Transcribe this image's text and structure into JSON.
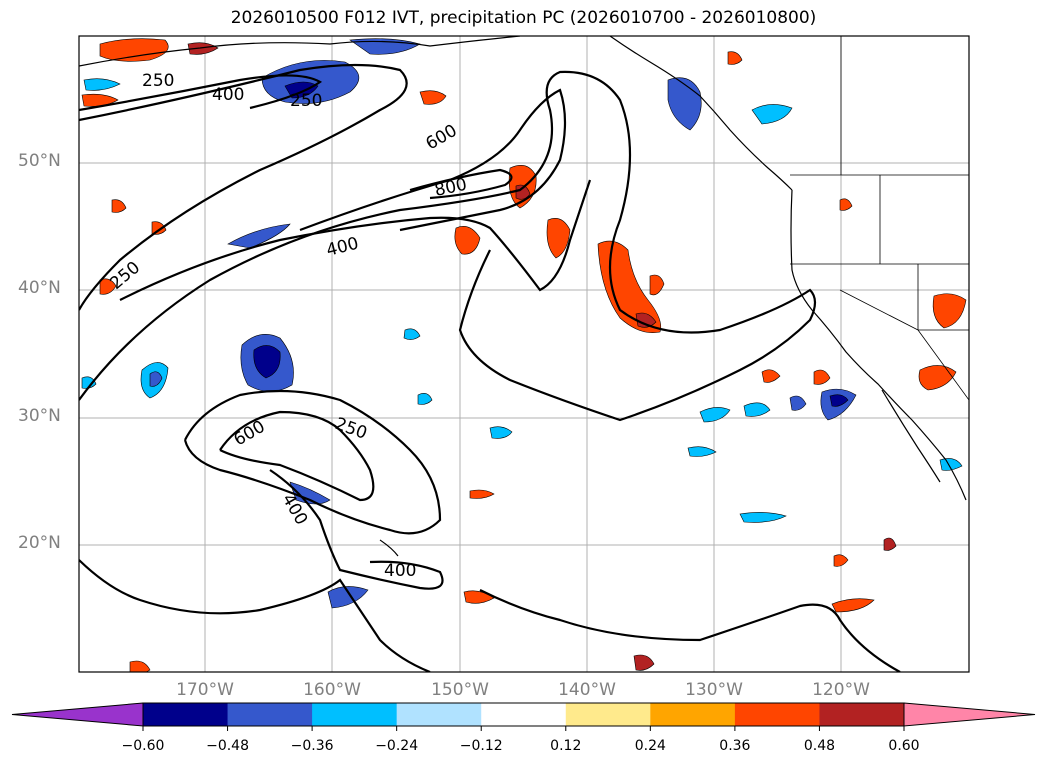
{
  "title": "2026010500 F012 IVT, precipitation PC (2026010700 - 2026010800)",
  "lat_labels": [
    "50°N",
    "40°N",
    "30°N",
    "20°N"
  ],
  "lon_labels": [
    "170°W",
    "160°W",
    "150°W",
    "140°W",
    "130°W",
    "120°W"
  ],
  "contour_labels": [
    "250",
    "400",
    "250",
    "600",
    "800",
    "400",
    "250",
    "250",
    "600",
    "400",
    "400"
  ],
  "colorbar": {
    "ticks": [
      "−0.60",
      "−0.48",
      "−0.36",
      "−0.24",
      "−0.12",
      "0.12",
      "0.24",
      "0.36",
      "0.48",
      "0.60"
    ],
    "colors": [
      "#9933cc",
      "#00008b",
      "#3558cc",
      "#00bfff",
      "#b0e2ff",
      "#ffffff",
      "#ffea8c",
      "#ffa500",
      "#ff4500",
      "#b22222",
      "#ff85a8"
    ]
  },
  "palette": {
    "neg_strong": "#00008b",
    "neg_mid": "#3558cc",
    "neg_light": "#00bfff",
    "neg_pale": "#b0e2ff",
    "pos_pale": "#ffea8c",
    "pos_light": "#ffa500",
    "pos_mid": "#ff4500",
    "pos_strong": "#b22222",
    "grid": "#b0b0b0",
    "contour": "#000000"
  }
}
